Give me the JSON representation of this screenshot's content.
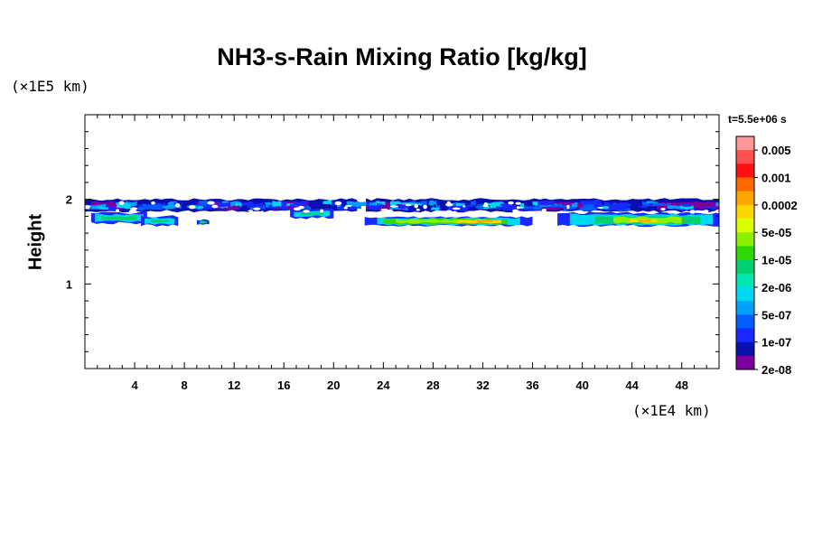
{
  "title": "NH3-s-Rain Mixing Ratio [kg/kg]",
  "y_unit": "(×1E5 km)",
  "x_unit": "(×1E4 km)",
  "ylabel": "Height",
  "time_label": "t=5.5e+06 s",
  "chart_data": {
    "type": "heatmap",
    "title": "NH3-s-Rain Mixing Ratio [kg/kg]",
    "xlabel": "",
    "ylabel": "Height",
    "x_unit": "×1E4 km",
    "y_unit": "×1E5 km",
    "xlim": [
      0,
      51
    ],
    "ylim": [
      0,
      3
    ],
    "x_ticks": [
      4,
      8,
      12,
      16,
      20,
      24,
      28,
      32,
      36,
      40,
      44,
      48
    ],
    "y_ticks": [
      1,
      2
    ],
    "colorbar": {
      "scale": "log",
      "labels": [
        "0.005",
        "0.001",
        "0.0002",
        "5e-05",
        "1e-05",
        "2e-06",
        "5e-07",
        "1e-07",
        "2e-08"
      ],
      "colors": [
        "#ff9999",
        "#ff5050",
        "#ff1010",
        "#ff6a00",
        "#ffa500",
        "#ffd700",
        "#d9ff00",
        "#8cf000",
        "#2ed800",
        "#00d070",
        "#00e8b0",
        "#00d8f0",
        "#00a0ff",
        "#0060ff",
        "#1828ff",
        "#0a10b0",
        "#7a00a0"
      ]
    },
    "features": [
      {
        "name": "upper cloud band",
        "x_range": [
          0,
          51
        ],
        "height_range": [
          1.7,
          2.0
        ],
        "level": "2e-08 to 1e-07"
      },
      {
        "name": "lower layer left",
        "x_range": [
          0,
          22
        ],
        "height_range": [
          1.7,
          1.85
        ],
        "level": "5e-07 to 1e-05"
      },
      {
        "name": "lower layer right",
        "x_range": [
          22.5,
          51
        ],
        "height_range": [
          1.7,
          1.8
        ],
        "level": "1e-05 to 0.0002"
      }
    ]
  }
}
